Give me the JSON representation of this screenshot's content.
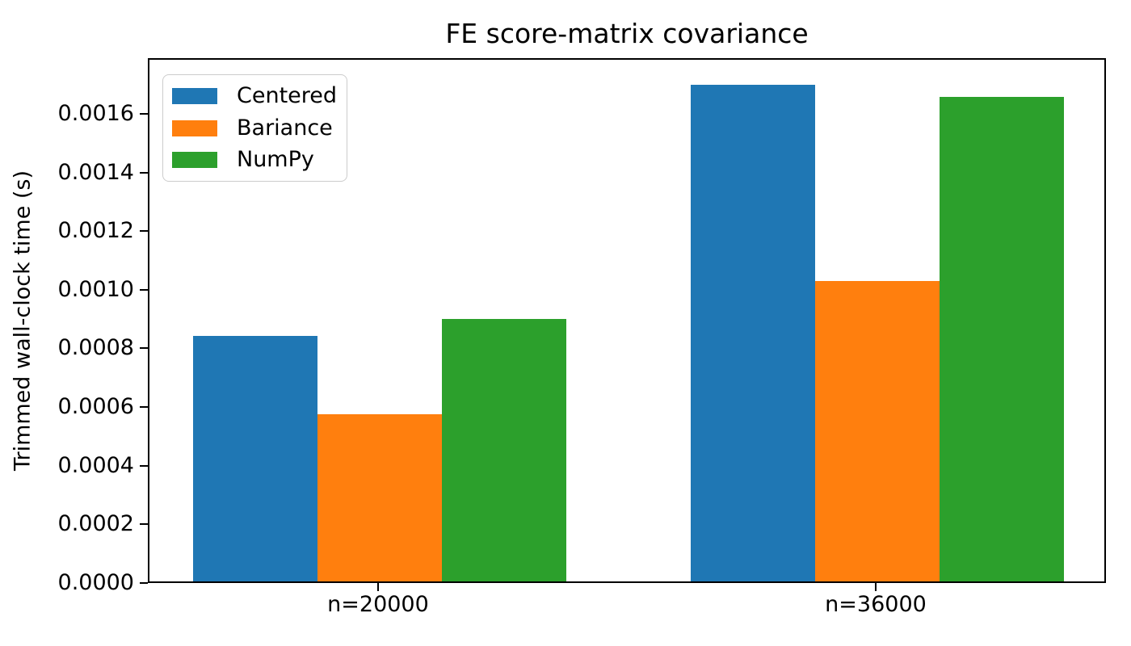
{
  "title": "FE score-matrix covariance",
  "chart_data": {
    "type": "bar",
    "title": "FE score-matrix covariance",
    "xlabel": "",
    "ylabel": "Trimmed wall-clock time (s)",
    "categories": [
      "n=20000",
      "n=36000"
    ],
    "series": [
      {
        "name": "Centered",
        "color": "#1f77b4",
        "values": [
          0.000837,
          0.001694
        ]
      },
      {
        "name": "Bariance",
        "color": "#ff7f0e",
        "values": [
          0.00057,
          0.001024
        ]
      },
      {
        "name": "NumPy",
        "color": "#2ca02c",
        "values": [
          0.000895,
          0.001652
        ]
      }
    ],
    "ylim": [
      0,
      0.00179
    ],
    "yticks": [
      0,
      0.0002,
      0.0004,
      0.0006,
      0.0008,
      0.001,
      0.0012,
      0.0014,
      0.0016
    ],
    "ytick_labels": [
      "0.0000",
      "0.0002",
      "0.0004",
      "0.0006",
      "0.0008",
      "0.0010",
      "0.0012",
      "0.0014",
      "0.0016"
    ],
    "legend_position": "upper left",
    "grid": false,
    "axis_color": "#000000",
    "background_color": "#ffffff"
  }
}
